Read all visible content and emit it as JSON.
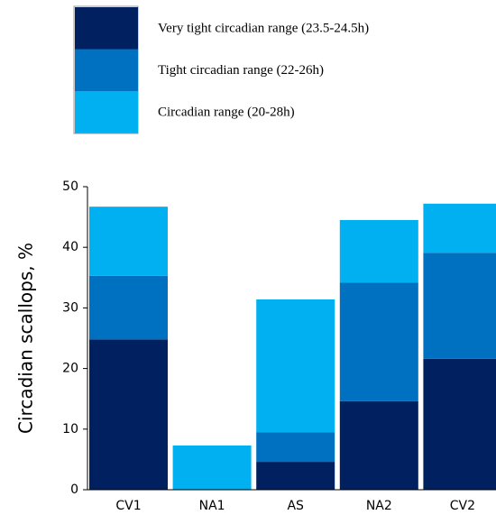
{
  "chart_data": {
    "type": "stacked_bar",
    "y_label": "Circadian scallops, %",
    "categories": [
      "CV1",
      "NA1",
      "AS",
      "NA2",
      "CV2"
    ],
    "series": [
      {
        "name": "Very tight circadian range (23.5-24.5h)",
        "color": "#002060",
        "values": [
          24.8,
          0,
          4.6,
          14.6,
          21.6
        ]
      },
      {
        "name": "Tight circadian range (22-26h)",
        "color": "#0070c0",
        "values": [
          10.5,
          0,
          4.9,
          19.6,
          17.5
        ]
      },
      {
        "name": "Circadian range (20-28h)",
        "color": "#00b0f0",
        "values": [
          11.4,
          7.3,
          21.9,
          10.3,
          8.1
        ]
      }
    ],
    "ylim": [
      0,
      50
    ],
    "yticks": [
      0,
      10,
      20,
      30,
      40,
      50
    ],
    "grid": false
  }
}
